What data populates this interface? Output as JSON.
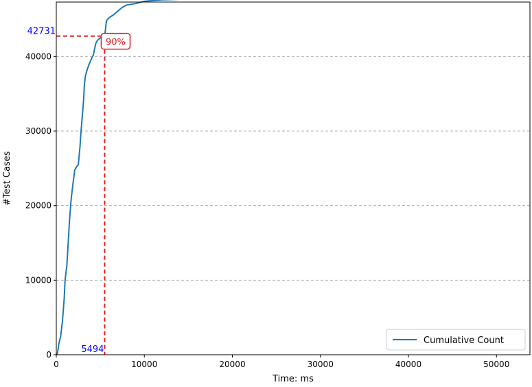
{
  "colors": {
    "series": "#1f77b4",
    "threshold": "#e31a1c",
    "annotation_value": "#0000ff",
    "grid": "#b0b0b0"
  },
  "chart_data": {
    "type": "line",
    "title": "",
    "xlabel": "Time: ms",
    "ylabel": "#Test Cases",
    "xlim": [
      0,
      53800
    ],
    "ylim": [
      0,
      47300
    ],
    "xticks": [
      0,
      10000,
      20000,
      30000,
      40000,
      50000
    ],
    "yticks": [
      0,
      10000,
      20000,
      30000,
      40000
    ],
    "grid": "y-dashed",
    "legend_position": "lower-right",
    "series": [
      {
        "name": "Cumulative Count",
        "x": [
          100,
          300,
          500,
          700,
          900,
          1000,
          1200,
          1400,
          1500,
          1700,
          1900,
          2100,
          2300,
          2500,
          2700,
          2800,
          2900,
          3100,
          3200,
          3300,
          3400,
          3500,
          3700,
          4000,
          4200,
          4500,
          4700,
          5000,
          5300,
          5494,
          5700,
          6000,
          6500,
          7000,
          7500,
          8000,
          9000,
          10000,
          12000,
          15000,
          20000,
          28000,
          35000,
          45000,
          51300
        ],
        "y": [
          0,
          1500,
          2500,
          4500,
          7500,
          10000,
          12000,
          16000,
          18000,
          21000,
          23000,
          24800,
          25200,
          25500,
          28000,
          29800,
          31200,
          34200,
          36300,
          37300,
          37800,
          38200,
          38900,
          39700,
          40200,
          41800,
          42200,
          42500,
          42650,
          42731,
          44800,
          45200,
          45600,
          46100,
          46600,
          46900,
          47100,
          47400,
          47600,
          47700,
          47800,
          47900,
          47900,
          47900,
          47900
        ]
      }
    ],
    "annotations": {
      "threshold_y": 42731,
      "threshold_x": 5494,
      "y_value_label": "42731",
      "x_value_label": "5494",
      "percentile_label": "90%"
    }
  }
}
